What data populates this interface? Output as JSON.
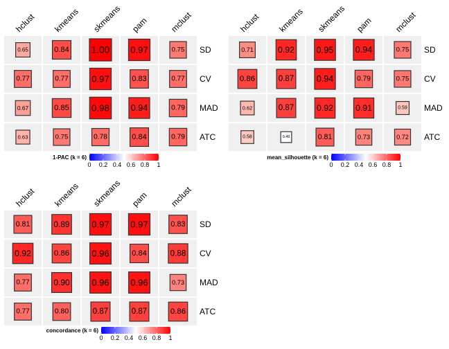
{
  "chart_data": [
    {
      "type": "heatmap",
      "columns": [
        "hclust",
        "kmeans",
        "skmeans",
        "pam",
        "mclust"
      ],
      "rows": [
        "SD",
        "CV",
        "MAD",
        "ATC"
      ],
      "values": [
        [
          0.65,
          0.84,
          1.0,
          0.97,
          0.75
        ],
        [
          0.77,
          0.77,
          0.97,
          0.83,
          0.77
        ],
        [
          0.67,
          0.85,
          0.98,
          0.94,
          0.79
        ],
        [
          0.63,
          0.75,
          0.78,
          0.84,
          0.79
        ]
      ],
      "labels": [
        [
          "0.65",
          "0.84",
          "1.00",
          "0.97",
          "0.75"
        ],
        [
          "0.77",
          "0.77",
          "0.97",
          "0.83",
          "0.77"
        ],
        [
          "0.67",
          "0.85",
          "0.98",
          "0.94",
          "0.79"
        ],
        [
          "0.63",
          "0.75",
          "0.78",
          "0.84",
          "0.79"
        ]
      ],
      "legend_title": "1-PAC (k = 6)",
      "legend_ticks": [
        "0",
        "0.2",
        "0.4",
        "0.6",
        "0.8",
        "1"
      ],
      "color_scale": {
        "low": "#0000ff",
        "mid": "#ffffff",
        "high": "#ff0000",
        "range": [
          0,
          1
        ]
      }
    },
    {
      "type": "heatmap",
      "columns": [
        "hclust",
        "kmeans",
        "skmeans",
        "pam",
        "mclust"
      ],
      "rows": [
        "SD",
        "CV",
        "MAD",
        "ATC"
      ],
      "values": [
        [
          0.71,
          0.92,
          0.95,
          0.94,
          0.75
        ],
        [
          0.86,
          0.87,
          0.94,
          0.79,
          0.75
        ],
        [
          0.62,
          0.87,
          0.92,
          0.91,
          0.59
        ],
        [
          0.58,
          0.49,
          0.81,
          0.73,
          0.72
        ]
      ],
      "labels": [
        [
          "0.71",
          "0.92",
          "0.95",
          "0.94",
          "0.75"
        ],
        [
          "0.86",
          "0.87",
          "0.94",
          "0.79",
          "0.75"
        ],
        [
          "0.62",
          "0.87",
          "0.92",
          "0.91",
          "0.59"
        ],
        [
          "0.58",
          "0.49",
          "0.81",
          "0.73",
          "0.72"
        ]
      ],
      "legend_title": "mean_silhouette (k = 6)",
      "legend_ticks": [
        "0",
        "0.2",
        "0.4",
        "0.6",
        "0.8",
        "1"
      ],
      "color_scale": {
        "low": "#0000ff",
        "mid": "#ffffff",
        "high": "#ff0000",
        "range": [
          0,
          1
        ]
      }
    },
    {
      "type": "heatmap",
      "columns": [
        "hclust",
        "kmeans",
        "skmeans",
        "pam",
        "mclust"
      ],
      "rows": [
        "SD",
        "CV",
        "MAD",
        "ATC"
      ],
      "values": [
        [
          0.81,
          0.89,
          0.97,
          0.97,
          0.83
        ],
        [
          0.92,
          0.86,
          0.96,
          0.84,
          0.88
        ],
        [
          0.77,
          0.9,
          0.96,
          0.96,
          0.73
        ],
        [
          0.77,
          0.8,
          0.87,
          0.87,
          0.86
        ]
      ],
      "labels": [
        [
          "0.81",
          "0.89",
          "0.97",
          "0.97",
          "0.83"
        ],
        [
          "0.92",
          "0.86",
          "0.96",
          "0.84",
          "0.88"
        ],
        [
          "0.77",
          "0.90",
          "0.96",
          "0.96",
          "0.73"
        ],
        [
          "0.77",
          "0.80",
          "0.87",
          "0.87",
          "0.86"
        ]
      ],
      "legend_title": "concordance (k = 6)",
      "legend_ticks": [
        "0",
        "0.2",
        "0.4",
        "0.6",
        "0.8",
        "1"
      ],
      "color_scale": {
        "low": "#0000ff",
        "mid": "#ffffff",
        "high": "#ff0000",
        "range": [
          0,
          1
        ]
      }
    }
  ]
}
